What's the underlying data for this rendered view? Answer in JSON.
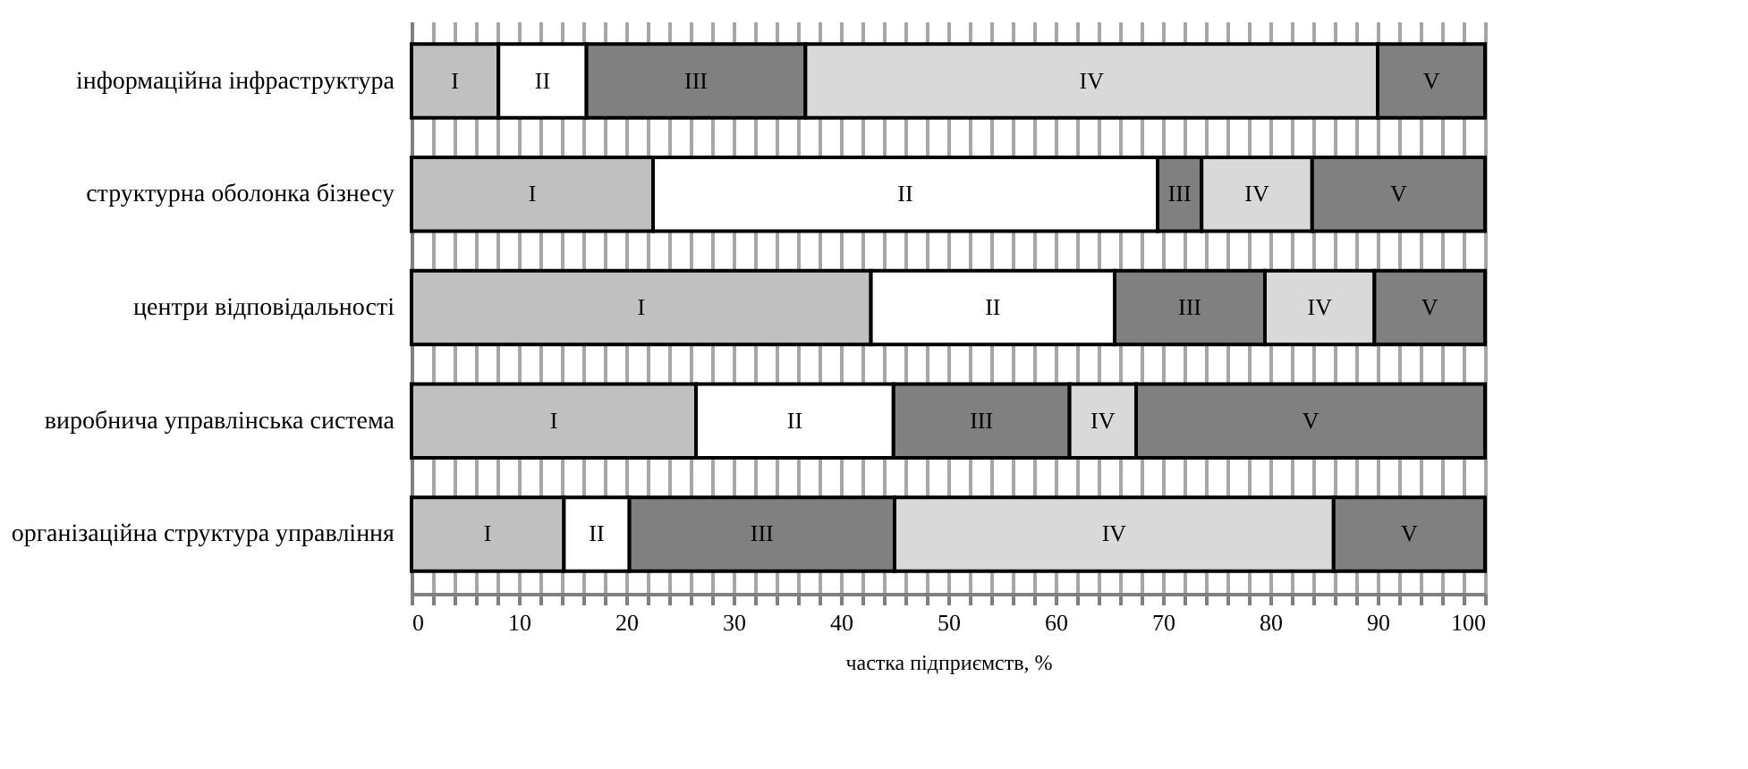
{
  "chart_data": {
    "type": "bar",
    "orientation": "horizontal",
    "stacked": true,
    "categories": [
      "інформаційна інфраструктура",
      "структурна оболонка бізнесу",
      "центри відповідальності",
      "виробнича управлінська система",
      "організаційна структура управління"
    ],
    "series": [
      {
        "name": "I",
        "color": "#c0c0c0",
        "values": [
          8.1,
          22.5,
          42.8,
          26.5,
          14.2
        ]
      },
      {
        "name": "II",
        "color": "#ffffff",
        "values": [
          8.2,
          47.0,
          22.7,
          18.4,
          6.1
        ]
      },
      {
        "name": "III",
        "color": "#808080",
        "values": [
          20.4,
          4.1,
          14.0,
          16.4,
          24.7
        ]
      },
      {
        "name": "IV",
        "color": "#d9d9d9",
        "values": [
          53.3,
          10.3,
          10.2,
          6.2,
          40.9
        ]
      },
      {
        "name": "V",
        "color": "#808080",
        "values": [
          10.0,
          16.1,
          10.3,
          32.5,
          14.1
        ]
      }
    ],
    "xlabel": "частка підприємств, %",
    "xlim": [
      0,
      100
    ],
    "xticks": [
      0,
      {
        "value": 2,
        "label": null
      },
      {
        "value": 4,
        "label": null
      },
      {
        "value": 6,
        "label": null
      },
      {
        "value": 8,
        "label": null
      },
      10,
      {
        "value": 12,
        "label": null
      },
      {
        "value": 14,
        "label": null
      },
      {
        "value": 16,
        "label": null
      },
      {
        "value": 18,
        "label": null
      },
      20,
      {
        "value": 22,
        "label": null
      },
      {
        "value": 24,
        "label": null
      },
      {
        "value": 26,
        "label": null
      },
      {
        "value": 28,
        "label": null
      },
      30,
      {
        "value": 32,
        "label": null
      },
      {
        "value": 34,
        "label": null
      },
      {
        "value": 36,
        "label": null
      },
      {
        "value": 38,
        "label": null
      },
      40,
      {
        "value": 42,
        "label": null
      },
      {
        "value": 44,
        "label": null
      },
      {
        "value": 46,
        "label": null
      },
      {
        "value": 48,
        "label": null
      },
      50,
      {
        "value": 52,
        "label": null
      },
      {
        "value": 54,
        "label": null
      },
      {
        "value": 56,
        "label": null
      },
      {
        "value": 58,
        "label": null
      },
      60,
      {
        "value": 62,
        "label": null
      },
      {
        "value": 64,
        "label": null
      },
      {
        "value": 66,
        "label": null
      },
      {
        "value": 68,
        "label": null
      },
      70,
      {
        "value": 72,
        "label": null
      },
      {
        "value": 74,
        "label": null
      },
      {
        "value": 76,
        "label": null
      },
      {
        "value": 78,
        "label": null
      },
      80,
      {
        "value": 82,
        "label": null
      },
      {
        "value": 84,
        "label": null
      },
      {
        "value": 86,
        "label": null
      },
      {
        "value": 88,
        "label": null
      },
      90,
      {
        "value": 92,
        "label": null
      },
      {
        "value": 94,
        "label": null
      },
      {
        "value": 96,
        "label": null
      },
      {
        "value": 98,
        "label": null
      },
      100
    ],
    "grid": "x",
    "legend": false
  }
}
